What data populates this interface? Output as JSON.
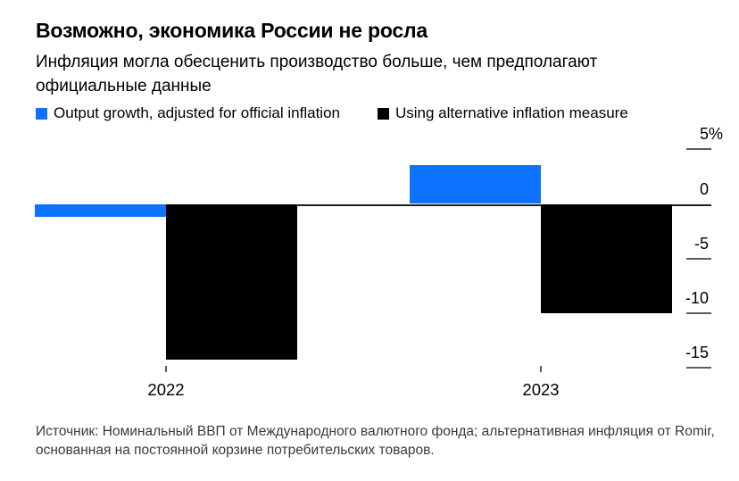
{
  "header": {
    "title": "Возможно, экономика России не росла",
    "subtitle": "Инфляция могла обесценить производство больше, чем предполагают официальные данные"
  },
  "legend": [
    {
      "label": "Output growth, adjusted for official inflation",
      "color": "#0d73ff"
    },
    {
      "label": "Using alternative inflation measure",
      "color": "#000000"
    }
  ],
  "chart_data": {
    "type": "bar",
    "title": "Возможно, экономика России не росла",
    "categories": [
      "2022",
      "2023"
    ],
    "series": [
      {
        "name": "Output growth, adjusted for official inflation",
        "color": "#0d73ff",
        "values": [
          -1.2,
          3.6
        ]
      },
      {
        "name": "Using alternative inflation measure",
        "color": "#000000",
        "values": [
          -14.3,
          -10.0
        ]
      }
    ],
    "xlabel": "",
    "ylabel": "",
    "y_ticks": [
      5,
      0,
      -5,
      -10,
      -15
    ],
    "y_tick_labels": [
      "5%",
      "0",
      "-5",
      "-10",
      "-15"
    ],
    "ylim": [
      -16.5,
      5.5
    ],
    "grid": false,
    "legend_position": "top",
    "unit": "%"
  },
  "footer": {
    "source": "Источник: Номинальный ВВП от Международного валютного фонда; альтернативная инфляция от Romir, основанная на постоянной корзине потребительских товаров."
  }
}
